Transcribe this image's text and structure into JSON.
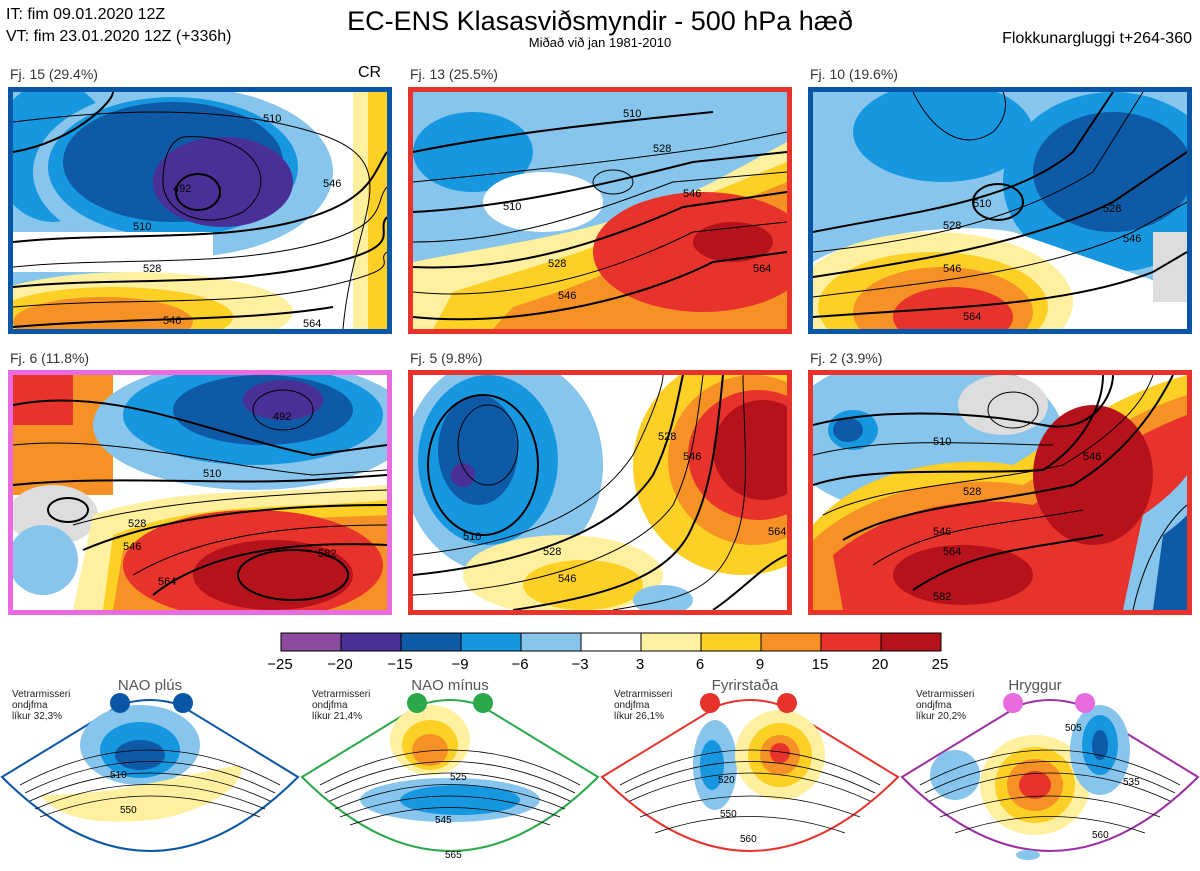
{
  "header": {
    "it": "IT: fim 09.01.2020 12Z",
    "vt": "VT: fim 23.01.2020 12Z  (+336h)",
    "title": "EC-ENS Klasasviðsmyndir - 500 hPa hæð",
    "subtitle": "Miðað við jan 1981-2010",
    "window": "Flokkunargluggi t+264-360"
  },
  "panels": [
    {
      "label": "Fj. 15 (29.4%)",
      "badge": "CR",
      "border": "#0a56a6",
      "contours": [
        "492",
        "510",
        "528",
        "546",
        "510",
        "546",
        "564"
      ]
    },
    {
      "label": "Fj. 13 (25.5%)",
      "border": "#e8322c",
      "contours": [
        "510",
        "528",
        "546",
        "510",
        "528",
        "546",
        "564"
      ]
    },
    {
      "label": "Fj. 10 (19.6%)",
      "border": "#0a56a6",
      "contours": [
        "510",
        "528",
        "546",
        "564",
        "528",
        "546"
      ]
    },
    {
      "label": "Fj. 6 (11.8%)",
      "border": "#e86ce0",
      "contours": [
        "510",
        "528",
        "546",
        "564",
        "582",
        "492"
      ]
    },
    {
      "label": "Fj. 5 (9.8%)",
      "border": "#e8322c",
      "contours": [
        "510",
        "528",
        "546",
        "528",
        "546",
        "564"
      ]
    },
    {
      "label": "Fj. 2 (3.9%)",
      "border": "#e8322c",
      "contours": [
        "510",
        "528",
        "546",
        "564",
        "582",
        "546"
      ]
    }
  ],
  "colorbar": {
    "colors": [
      "#8b4ba0",
      "#4a2f96",
      "#0f5aa6",
      "#1797e0",
      "#87c5ec",
      "#ffffff",
      "#fff0a0",
      "#fcd025",
      "#f69225",
      "#e8322c",
      "#b5121b"
    ],
    "ticks": [
      "−25",
      "−20",
      "−15",
      "−9",
      "−6",
      "−3",
      "3",
      "6",
      "9",
      "15",
      "20",
      "25"
    ]
  },
  "regimes": [
    {
      "name": "NAO plús",
      "info": [
        "Vetrarmisseri",
        "ondjfma",
        "líkur 32,3%"
      ],
      "color": "#0a56a6",
      "contours": [
        "510",
        "550"
      ]
    },
    {
      "name": "NAO mínus",
      "info": [
        "Vetrarmisseri",
        "ondjfma",
        "líkur 21,4%"
      ],
      "color": "#2aa84a",
      "contours": [
        "525",
        "545",
        "565"
      ]
    },
    {
      "name": "Fyrirstaða",
      "info": [
        "Vetrarmisseri",
        "ondjfma",
        "líkur 26,1%"
      ],
      "color": "#e8322c",
      "contours": [
        "520",
        "550",
        "560"
      ]
    },
    {
      "name": "Hryggur",
      "info": [
        "Vetrarmisseri",
        "ondjfma",
        "líkur 20,2%"
      ],
      "color": "#e86ce0",
      "contours": [
        "505",
        "535",
        "560"
      ]
    }
  ]
}
